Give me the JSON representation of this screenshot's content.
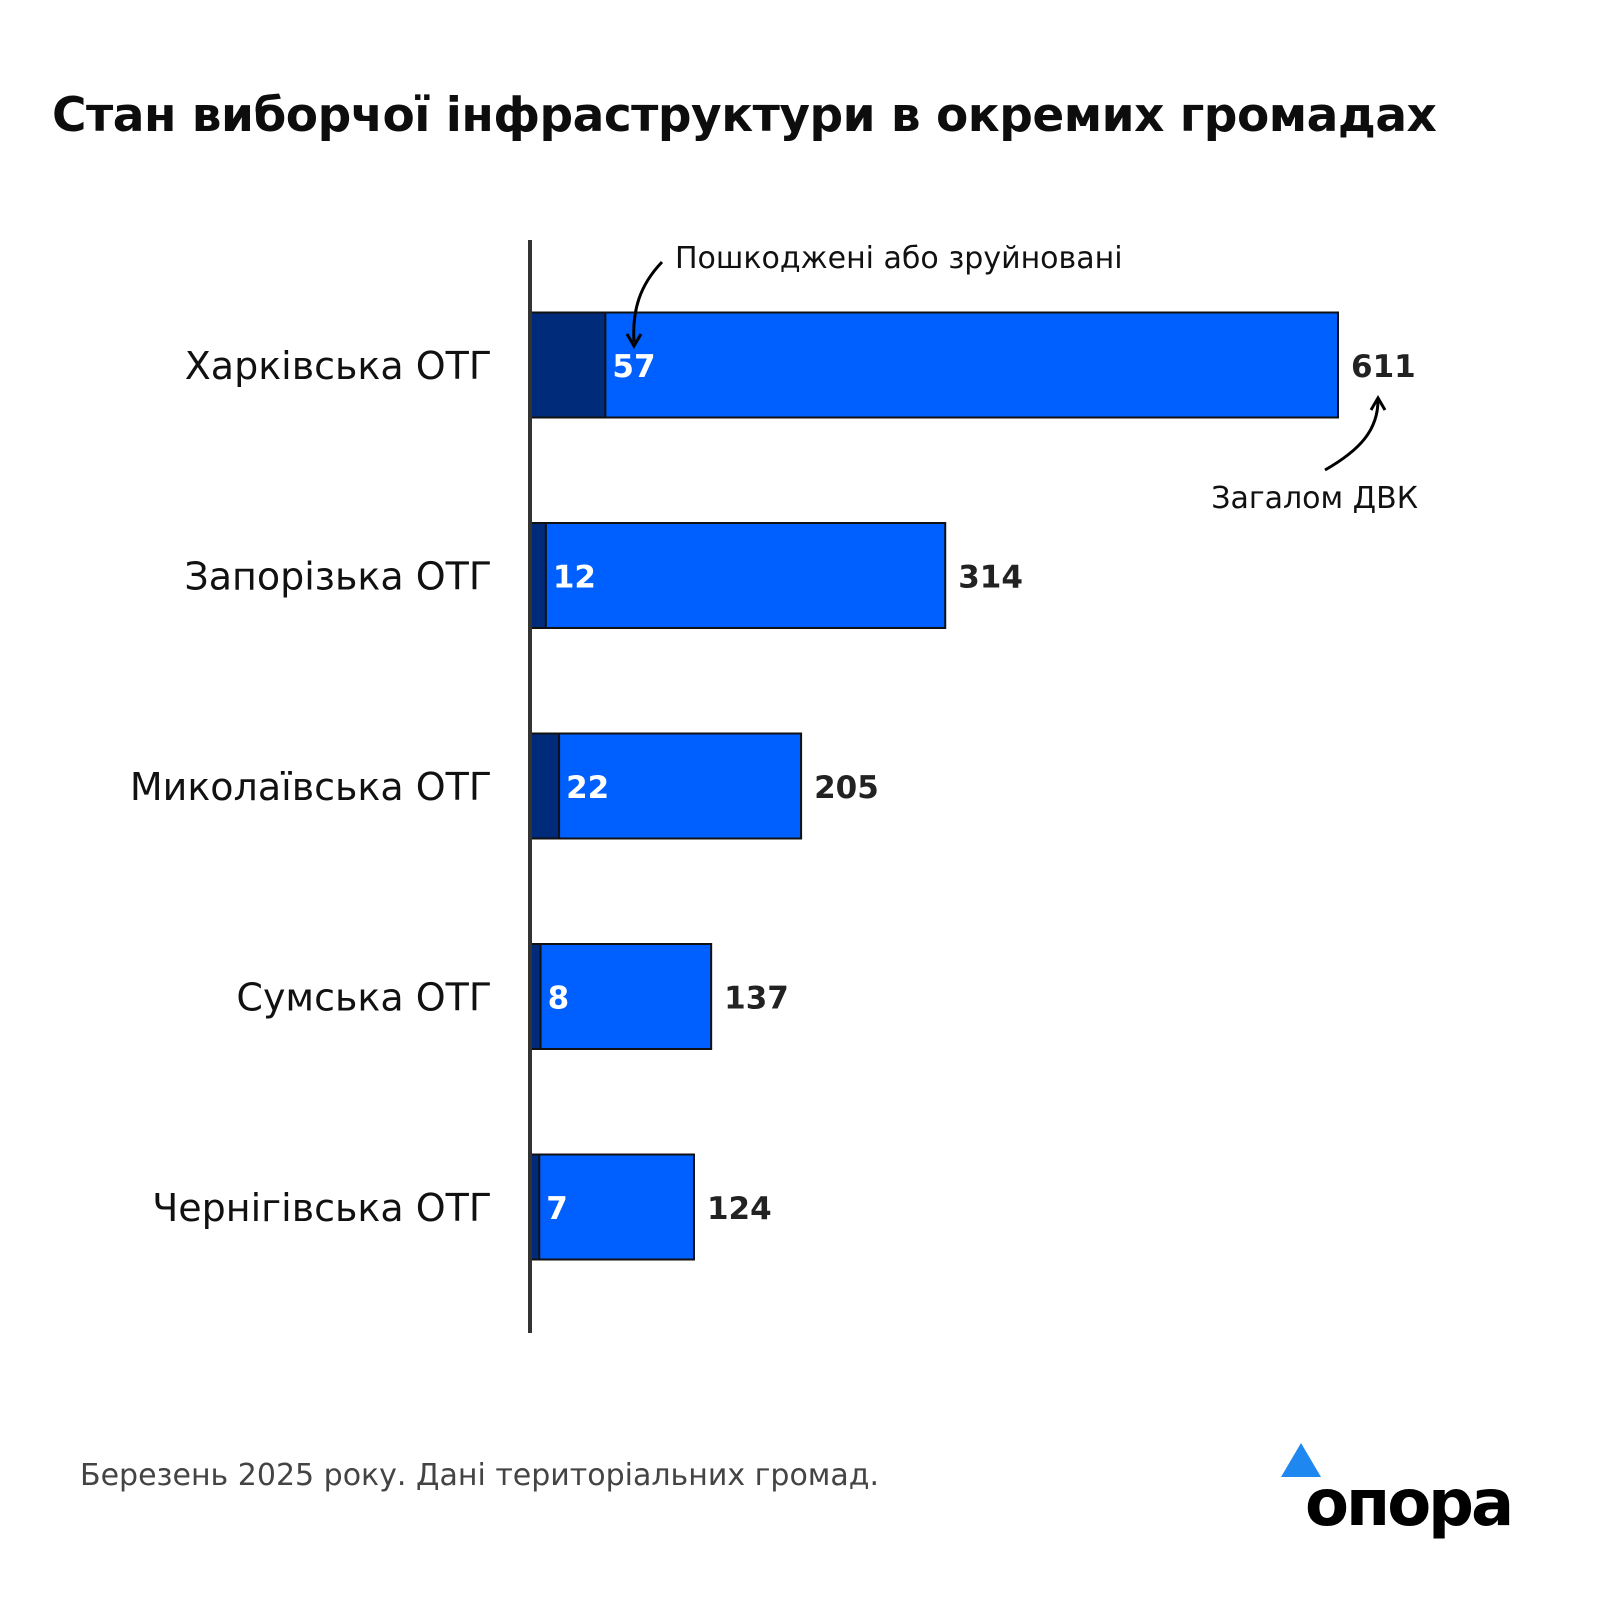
{
  "title": "Стан виборчої інфраструктури в окремих громадах",
  "footer": "Березень 2025 року. Дані територіальних громад.",
  "logo_text": "опора",
  "colors": {
    "damaged": "#002a7a",
    "total": "#0060ff",
    "logo_triangle": "#1e88f0"
  },
  "chart_data": {
    "type": "bar",
    "orientation": "horizontal",
    "stacked_overlay": true,
    "categories": [
      "Харківська ОТГ",
      "Запорізька ОТГ",
      "Миколаївська ОТГ",
      "Сумська ОТГ",
      "Чернігівська ОТГ"
    ],
    "series": [
      {
        "name": "Пошкоджені або зруйновані",
        "values": [
          57,
          12,
          22,
          8,
          7
        ]
      },
      {
        "name": "Загалом ДВК",
        "values": [
          611,
          314,
          205,
          137,
          124
        ]
      }
    ],
    "xlim": [
      0,
      611
    ],
    "grid": false,
    "annotations": {
      "damaged": "Пошкоджені або зруйновані",
      "total": "Загалом ДВК"
    }
  }
}
